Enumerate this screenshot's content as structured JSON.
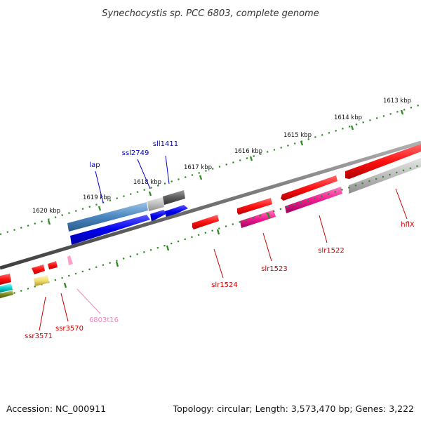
{
  "title": "Synechocystis sp. PCC 6803, complete genome",
  "footer": {
    "accession": "Accession: NC_000911",
    "summary": "Topology: circular; Length: 3,573,470 bp; Genes: 3,222"
  },
  "scale_labels": [
    "1613 kbp",
    "1614 kbp",
    "1615 kbp",
    "1616 kbp",
    "1617 kbp",
    "1618 kbp",
    "1619 kbp",
    "1620 kbp"
  ],
  "gene_labels": {
    "hflX": "hflX",
    "slr1522": "slr1522",
    "slr1523": "slr1523",
    "slr1524": "slr1524",
    "sll1411": "sll1411",
    "ssl2749": "ssl2749",
    "lap": "lap",
    "ssr3571": "ssr3571",
    "ssr3570": "ssr3570",
    "t6803t16": "6803t16"
  },
  "colors": {
    "backbone": "#777777",
    "scale_ticks": "#2e8b22",
    "forward_label": "#0000cc",
    "reverse_label": "#cc0000",
    "trna_label": "#ee88bb"
  }
}
